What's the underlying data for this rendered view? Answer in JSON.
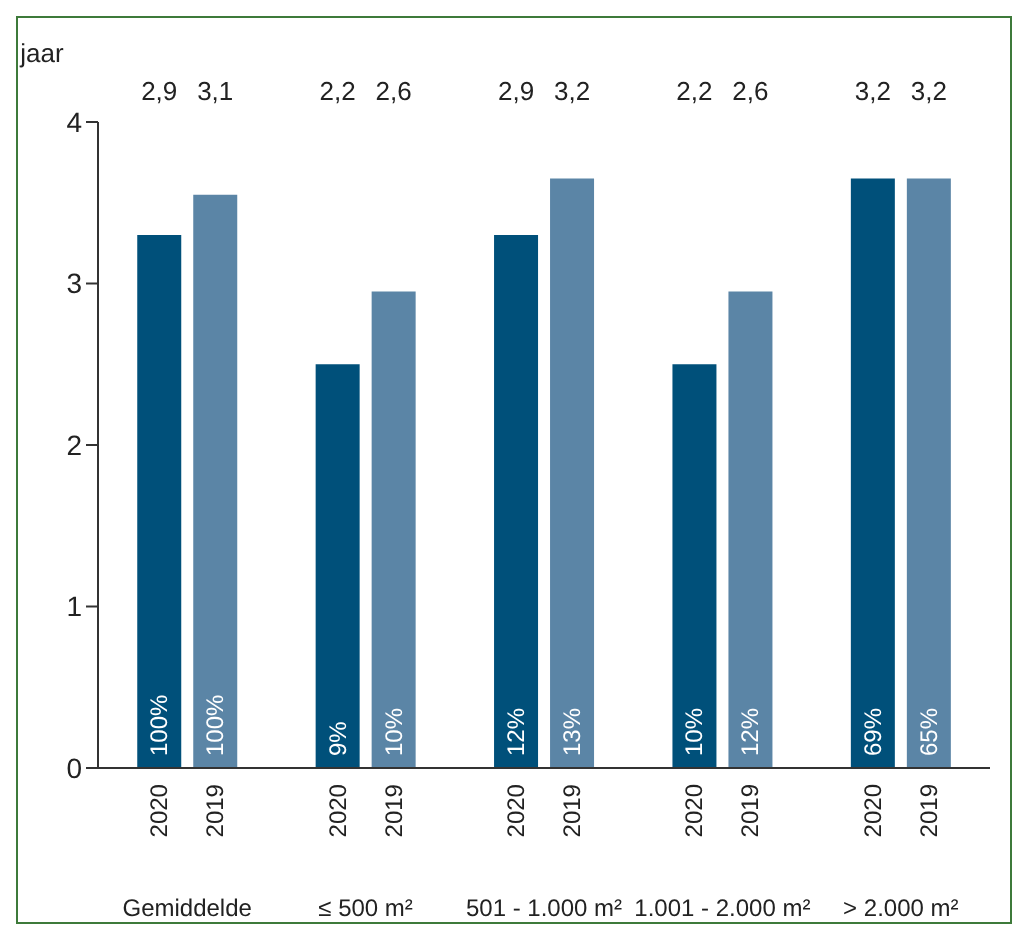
{
  "chart_data": {
    "type": "bar",
    "ylabel": "jaar",
    "categories": [
      "Gemiddelde",
      "≤ 500 m²",
      "501 - 1.000 m²",
      "1.001 - 2.000 m²",
      "> 2.000 m²"
    ],
    "series": [
      {
        "name": "2020",
        "color": "#00507a",
        "values": [
          3.3,
          2.5,
          3.3,
          2.5,
          3.65
        ]
      },
      {
        "name": "2019",
        "color": "#5b85a6",
        "values": [
          3.55,
          2.95,
          3.65,
          2.95,
          3.65
        ]
      }
    ],
    "annotations": [
      "2,9",
      "3,1",
      "2,2",
      "2,6",
      "2,9",
      "3,2",
      "2,2",
      "2,6",
      "3,2",
      "3,2",
      "100%",
      "100%",
      "9%",
      "10%",
      "12%",
      "13%",
      "10%",
      "12%",
      "69%",
      "65%"
    ],
    "ylim": [
      0,
      4
    ],
    "yticks": [
      0,
      1,
      2,
      3,
      4
    ],
    "legend": false
  }
}
